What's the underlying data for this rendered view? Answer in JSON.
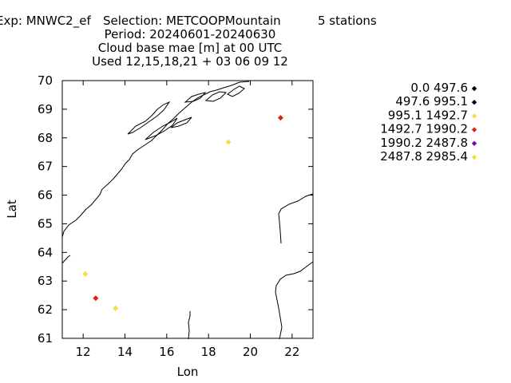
{
  "header": {
    "line1_left": "Exp: MNWC2_ef",
    "line1_mid": "Selection: METCOOPMountain",
    "line1_right": "5 stations",
    "line2": "Period: 20240601-20240630",
    "line3": "Cloud base mae [m] at  00 UTC",
    "line4": "Used 12,15,18,21 + 03 06 09 12"
  },
  "chart_data": {
    "type": "scatter",
    "xlabel": "Lon",
    "ylabel": "Lat",
    "xlim": [
      11,
      23
    ],
    "ylim": [
      61,
      70
    ],
    "xticks": [
      "12",
      "14",
      "16",
      "18",
      "20",
      "22"
    ],
    "yticks": [
      "61",
      "62",
      "63",
      "64",
      "65",
      "66",
      "67",
      "68",
      "69",
      "70"
    ],
    "legend_position": "right",
    "legend": [
      {
        "label": "0.0 497.6",
        "color": "#000000"
      },
      {
        "label": "497.6 995.1",
        "color": "#000000"
      },
      {
        "label": "995.1 1492.7",
        "color": "#f0e040"
      },
      {
        "label": "1492.7 1990.2",
        "color": "#e02010"
      },
      {
        "label": "1990.2 2487.8",
        "color": "#8000c0"
      },
      {
        "label": "2487.8 2985.4",
        "color": "#f0e040"
      }
    ],
    "points": [
      {
        "lon": 21.45,
        "lat": 68.7,
        "bin": 3
      },
      {
        "lon": 18.95,
        "lat": 67.85,
        "bin": 2
      },
      {
        "lon": 12.1,
        "lat": 63.25,
        "bin": 2
      },
      {
        "lon": 12.6,
        "lat": 62.4,
        "bin": 3
      },
      {
        "lon": 13.55,
        "lat": 62.05,
        "bin": 2
      }
    ]
  }
}
